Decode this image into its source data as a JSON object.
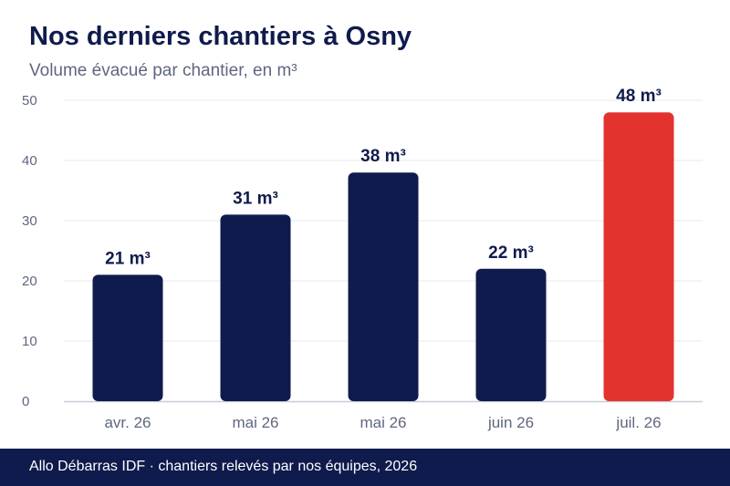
{
  "header": {
    "title": "Nos derniers chantiers à Osny",
    "subtitle": "Volume évacué par chantier, en m³"
  },
  "footer": {
    "source": "Allo Débarras IDF · chantiers relevés par nos équipes, 2026"
  },
  "colors": {
    "primary": "#0f1b4c",
    "highlight": "#e3332f",
    "grid": "#e9eaf0",
    "axis": "#c9cbd8",
    "tick_text": "#5f6680"
  },
  "chart_data": {
    "type": "bar",
    "title": "Nos derniers chantiers à Osny",
    "subtitle": "Volume évacué par chantier, en m³",
    "xlabel": "",
    "ylabel": "",
    "categories": [
      "avr. 26",
      "mai 26",
      "mai 26",
      "juin 26",
      "juil. 26"
    ],
    "values": [
      21,
      31,
      38,
      22,
      48
    ],
    "data_labels": [
      "21 m³",
      "31 m³",
      "38 m³",
      "22 m³",
      "48 m³"
    ],
    "highlight_index": 4,
    "ylim": [
      0,
      50
    ],
    "yticks": [
      0,
      10,
      20,
      30,
      40,
      50
    ],
    "grid": true,
    "legend": "none"
  }
}
